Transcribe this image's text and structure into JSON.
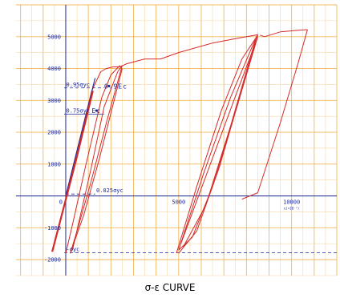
{
  "chart_data": {
    "type": "line",
    "title": "σ-ε CURVE",
    "xlabel": "",
    "x_unit_label": "ε(×10⁻⁶)",
    "ylabel": "",
    "xlim": [
      -2200,
      12000
    ],
    "ylim": [
      -2500,
      6000
    ],
    "x_ticks": [
      0,
      5000,
      10000
    ],
    "x_tick_labels": [
      "0",
      "5000",
      "10000"
    ],
    "y_ticks": [
      5000,
      4000,
      3000,
      2000,
      1000,
      -1000,
      -2000
    ],
    "y_tick_labels": [
      "5000",
      "4000",
      "3000",
      "2000",
      "1000",
      "-1000",
      "-2000"
    ],
    "grid": true,
    "series": [
      {
        "color": "#d42a2a",
        "segments": [
          [
            [
              0,
              0
            ],
            [
              1150,
              3300
            ],
            [
              1550,
              3900
            ],
            [
              1800,
              4000
            ],
            [
              2100,
              4050
            ],
            [
              2400,
              4050
            ],
            [
              2700,
              4150
            ],
            [
              3500,
              4300
            ],
            [
              4200,
              4300
            ],
            [
              5000,
              4500
            ],
            [
              6500,
              4800
            ],
            [
              7600,
              4950
            ],
            [
              8500,
              5060
            ]
          ],
          [
            [
              -600,
              -1750
            ],
            [
              450,
              1100
            ],
            [
              1200,
              3300
            ]
          ],
          [
            [
              0,
              -1800
            ],
            [
              300,
              -900
            ],
            [
              900,
              1000
            ],
            [
              1600,
              3100
            ],
            [
              2000,
              3800
            ],
            [
              2400,
              4100
            ]
          ],
          [
            [
              300,
              -1700
            ],
            [
              1100,
              800
            ],
            [
              1700,
              2800
            ],
            [
              2300,
              3900
            ],
            [
              2500,
              4100
            ]
          ],
          [
            [
              2500,
              4100
            ],
            [
              1800,
              2300
            ],
            [
              1100,
              400
            ],
            [
              500,
              -1100
            ],
            [
              200,
              -1800
            ]
          ],
          [
            [
              2500,
              4000
            ],
            [
              1500,
              1200
            ],
            [
              800,
              -600
            ],
            [
              200,
              -1800
            ]
          ],
          [
            [
              4900,
              -1800
            ],
            [
              5800,
              300
            ],
            [
              6900,
              2700
            ],
            [
              7800,
              4300
            ],
            [
              8500,
              5050
            ]
          ],
          [
            [
              5000,
              -1700
            ],
            [
              6100,
              700
            ],
            [
              7300,
              3100
            ],
            [
              8200,
              4600
            ],
            [
              8500,
              5080
            ]
          ],
          [
            [
              5100,
              -1500
            ],
            [
              6400,
              1000
            ],
            [
              7600,
              3300
            ],
            [
              8400,
              4800
            ]
          ],
          [
            [
              8500,
              5050
            ],
            [
              7700,
              3100
            ],
            [
              6800,
              900
            ],
            [
              5800,
              -1100
            ],
            [
              5000,
              -1800
            ]
          ],
          [
            [
              8500,
              5000
            ],
            [
              7500,
              2600
            ],
            [
              6500,
              300
            ],
            [
              5600,
              -1300
            ],
            [
              5000,
              -1700
            ]
          ],
          [
            [
              8400,
              4900
            ],
            [
              7300,
              2200
            ],
            [
              6200,
              -300
            ],
            [
              5200,
              -1600
            ]
          ],
          [
            [
              8600,
              5050
            ],
            [
              8800,
              5000
            ],
            [
              9500,
              5150
            ],
            [
              10300,
              5200
            ],
            [
              10700,
              5220
            ]
          ],
          [
            [
              10700,
              5220
            ],
            [
              10300,
              4200
            ],
            [
              9500,
              2300
            ],
            [
              8500,
              100
            ],
            [
              7800,
              -100
            ]
          ]
        ]
      },
      {
        "color": "#1a2aa0",
        "segments": [
          [
            [
              0,
              0
            ],
            [
              1300,
              3700
            ]
          ]
        ]
      }
    ],
    "reference_lines": [
      {
        "label": "0.95σyc",
        "y": 3390,
        "x_label": 20,
        "dash": true
      },
      {
        "label": "0.75σyc",
        "y": 2570,
        "x_label": 20,
        "dash": false
      },
      {
        "label": "0.025σyc",
        "y": 60,
        "x_label": 1350,
        "dash": true
      },
      {
        "label": "-σyc",
        "y": -1780,
        "x_label": 20,
        "dash": true
      }
    ],
    "annotations": [
      {
        "label": "0.9Ec",
        "x": 1700,
        "y": 3550
      },
      {
        "label": "Ec",
        "x": 1150,
        "y": 2780
      }
    ],
    "colors": {
      "grid_major": "#f0b85a",
      "grid_minor": "#f7d8a5",
      "axis": "#1a2aa0",
      "curve": "#d42a2a",
      "annotation": "#1a2aa0"
    }
  }
}
